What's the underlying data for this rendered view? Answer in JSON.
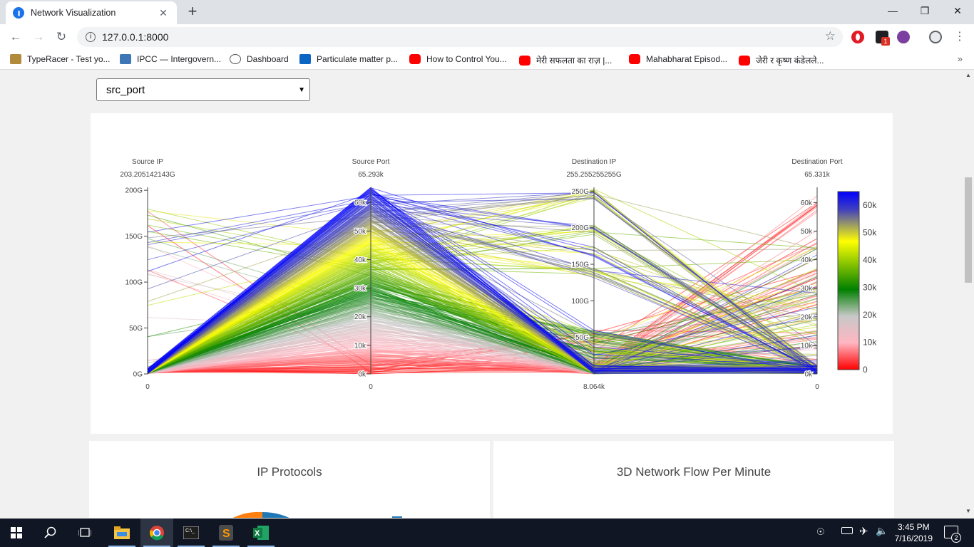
{
  "browser": {
    "tab_title": "Network Visualization",
    "url": "127.0.0.1:8000",
    "bookmarks": [
      {
        "label": "TypeRacer - Test yo...",
        "color": "#b28a3c"
      },
      {
        "label": "IPCC — Intergovern...",
        "color": "#3d77b6"
      },
      {
        "label": "Dashboard",
        "color": "#555555"
      },
      {
        "label": "Particulate matter p...",
        "color": "#0a66c2"
      },
      {
        "label": "How to Control You...",
        "color": "#ff0000"
      },
      {
        "label": "मेरी सफलता का राज़ |...",
        "color": "#ff0000"
      },
      {
        "label": "Mahabharat Episod...",
        "color": "#ff0000"
      },
      {
        "label": "जेरी र कृष्ण कंडेलले...",
        "color": "#ff0000"
      }
    ],
    "extension_badge": "1"
  },
  "controls": {
    "color_by_select": "src_port"
  },
  "chart_data": {
    "type": "parcoords",
    "axes": [
      {
        "label": "Source IP",
        "max_label": "203.205142143G",
        "min_label": "0",
        "range": [
          0,
          203205142143
        ],
        "ticks": [
          "200G",
          "150G",
          "100G",
          "50G",
          "0G"
        ]
      },
      {
        "label": "Source Port",
        "max_label": "65.293k",
        "min_label": "0",
        "range": [
          0,
          65293
        ],
        "ticks": [
          "60k",
          "50k",
          "40k",
          "30k",
          "20k",
          "10k",
          "0k"
        ]
      },
      {
        "label": "Destination IP",
        "max_label": "255.255255255G",
        "min_label": "8.064k",
        "range": [
          8064,
          255255255255
        ],
        "ticks": [
          "250G",
          "200G",
          "150G",
          "100G",
          "50G"
        ]
      },
      {
        "label": "Destination Port",
        "max_label": "65.331k",
        "min_label": "0",
        "range": [
          0,
          65331
        ],
        "ticks": [
          "60k",
          "50k",
          "40k",
          "30k",
          "20k",
          "10k",
          "0k"
        ]
      }
    ],
    "colorscale": {
      "colors": [
        "#ff0000",
        "#ffb6c1",
        "#c8c8c8",
        "#008000",
        "#ffff00",
        "#3f3fbf",
        "#0000ff"
      ],
      "ticks": [
        "60k",
        "50k",
        "40k",
        "30k",
        "20k",
        "10k",
        "0"
      ],
      "range": [
        0,
        65000
      ]
    }
  },
  "cards": {
    "ip_protocols_title": "IP Protocols",
    "flow_title": "3D Network Flow Per Minute"
  },
  "taskbar": {
    "time": "3:45 PM",
    "date": "7/16/2019",
    "notifications": "2"
  }
}
